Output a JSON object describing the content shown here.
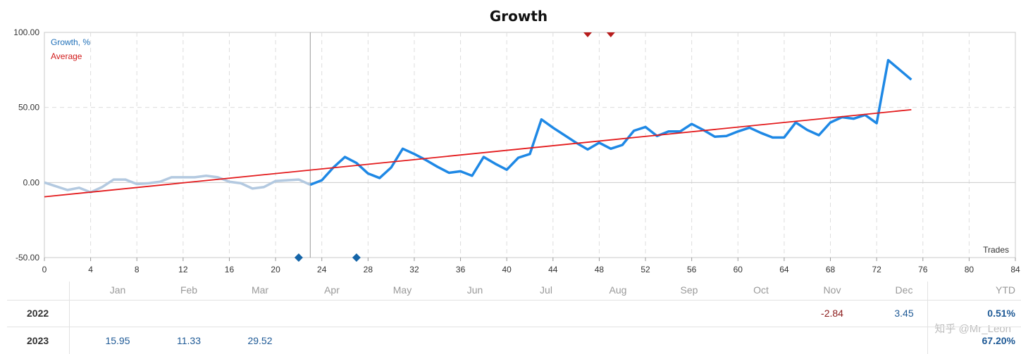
{
  "chart_data": {
    "type": "line",
    "title": "Growth",
    "xlabel": "Trades",
    "xlim": [
      0,
      84
    ],
    "ylim": [
      -50,
      100
    ],
    "xticks": [
      "0",
      "4",
      "8",
      "12",
      "16",
      "20",
      "24",
      "28",
      "32",
      "36",
      "40",
      "44",
      "48",
      "52",
      "56",
      "60",
      "64",
      "68",
      "72",
      "76",
      "80",
      "84"
    ],
    "yticks": [
      "100.00",
      "50.00",
      "0.00",
      "-50.00"
    ],
    "grid": true,
    "legend_position": "top-left",
    "marker_x": 23,
    "series": [
      {
        "name": "Growth, %",
        "color": "#1e88e5",
        "x": [
          0,
          1,
          2,
          3,
          4,
          5,
          6,
          7,
          8,
          9,
          10,
          11,
          12,
          13,
          14,
          15,
          16,
          17,
          18,
          19,
          20,
          21,
          22,
          23
        ],
        "y": [
          0,
          -2.5,
          -5,
          -3.5,
          -6.5,
          -3,
          2,
          2,
          -1,
          -0.5,
          0.5,
          3.5,
          3.5,
          3.5,
          4.5,
          3.5,
          0.5,
          -0.5,
          -4,
          -3,
          1,
          1.5,
          2,
          -1.5
        ],
        "segment": "historical",
        "light_color": "#b3c9e0"
      },
      {
        "name": "Growth, %",
        "x": [
          23,
          24,
          25,
          26,
          27,
          28,
          29,
          30,
          31,
          32,
          33,
          34,
          35,
          36,
          37,
          38,
          39,
          40,
          41,
          42,
          43,
          44,
          45,
          46,
          47,
          48,
          49,
          50,
          51,
          52,
          53,
          54,
          55,
          56,
          57,
          58,
          59,
          60,
          61,
          62,
          63,
          64,
          65,
          66,
          67,
          68,
          69,
          70,
          71,
          72,
          73,
          74,
          75
        ],
        "y": [
          -1.5,
          1.5,
          10,
          17,
          13,
          6,
          3,
          10,
          22.5,
          19,
          15,
          10.5,
          6.5,
          7.5,
          4.5,
          17,
          12.5,
          8.5,
          16.5,
          19,
          42,
          36.5,
          31.5,
          26.5,
          22,
          26.5,
          22.5,
          25,
          34.5,
          37,
          31,
          34,
          34,
          39,
          35,
          30.5,
          31,
          34,
          36.5,
          33,
          30,
          30,
          40,
          35,
          31.5,
          40,
          43.5,
          42.5,
          45,
          39.5,
          81.5,
          75,
          68.5
        ]
      },
      {
        "name": "Average",
        "color": "#e31a1c",
        "x": [
          0,
          75
        ],
        "y": [
          -9.5,
          48.5
        ]
      }
    ],
    "markers_top": [
      47,
      49
    ],
    "markers_bottom": [
      22,
      27
    ],
    "marker_color_top": "#b71c1c",
    "marker_color_bottom": "#1565a8"
  },
  "table": {
    "months": [
      "Jan",
      "Feb",
      "Mar",
      "Apr",
      "May",
      "Jun",
      "Jul",
      "Aug",
      "Sep",
      "Oct",
      "Nov",
      "Dec"
    ],
    "ytd_label": "YTD",
    "rows": [
      {
        "year": "2022",
        "values": [
          "",
          "",
          "",
          "",
          "",
          "",
          "",
          "",
          "",
          "",
          "-2.84",
          "3.45"
        ],
        "ytd": "0.51%"
      },
      {
        "year": "2023",
        "values": [
          "15.95",
          "11.33",
          "29.52",
          "",
          "",
          "",
          "",
          "",
          "",
          "",
          "",
          ""
        ],
        "ytd": "67.20%"
      }
    ]
  },
  "watermark": "知乎 @Mr_Leon"
}
